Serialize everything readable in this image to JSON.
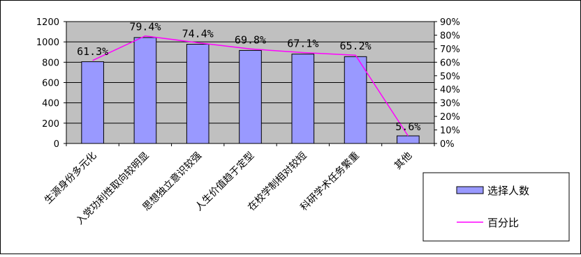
{
  "chart_data": {
    "type": "bar",
    "categories": [
      "生源身份多元化",
      "入党功利性取向较明显",
      "思想独立意识较强",
      "人生价值趋于定型",
      "在校学制相对较短",
      "科研学术任务繁重",
      "其他"
    ],
    "series": [
      {
        "name": "选择人数",
        "type": "bar",
        "axis": "left",
        "color": "#9999ff",
        "values": [
          805,
          1043,
          977,
          916,
          880,
          855,
          75
        ]
      },
      {
        "name": "百分比",
        "type": "line",
        "axis": "right",
        "color": "#ff00ff",
        "values": [
          61.3,
          79.4,
          74.4,
          69.8,
          67.1,
          65.2,
          5.6
        ]
      }
    ],
    "data_labels": [
      "61.3%",
      "79.4%",
      "74.4%",
      "69.8%",
      "67.1%",
      "65.2%",
      "5.6%"
    ],
    "y_left": {
      "min": 0,
      "max": 1200,
      "step": 200,
      "ticks": [
        "0",
        "200",
        "400",
        "600",
        "800",
        "1000",
        "1200"
      ]
    },
    "y_right": {
      "min": 0,
      "max": 90,
      "step": 10,
      "ticks": [
        "0%",
        "10%",
        "20%",
        "30%",
        "40%",
        "50%",
        "60%",
        "70%",
        "80%",
        "90%"
      ]
    },
    "plot_background": "#c0c0c0",
    "gridlines": true,
    "legend_position": "right",
    "legend": [
      "选择人数",
      "百分比"
    ]
  }
}
